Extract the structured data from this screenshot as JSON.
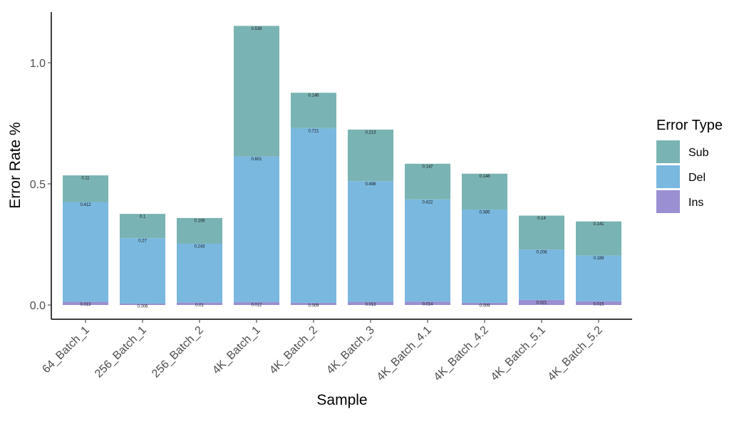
{
  "chart_data": {
    "type": "bar",
    "stacked": true,
    "xlabel": "Sample",
    "ylabel": "Error Rate %",
    "ylim": [
      0,
      1.2
    ],
    "yticks": [
      0.0,
      0.5,
      1.0
    ],
    "ytick_labels": [
      "0.0",
      "0.5",
      "1.0"
    ],
    "categories": [
      "64_Batch_1",
      "256_Batch_1",
      "256_Batch_2",
      "4K_Batch_1",
      "4K_Batch_2",
      "4K_Batch_3",
      "4K_Batch_4.1",
      "4K_Batch_4.2",
      "4K_Batch_5.1",
      "4K_Batch_5.2"
    ],
    "series": [
      {
        "name": "Ins",
        "color": "#9a8fd1",
        "values": [
          0.013,
          0.006,
          0.01,
          0.012,
          0.009,
          0.013,
          0.014,
          0.009,
          0.021,
          0.015
        ]
      },
      {
        "name": "Del",
        "color": "#7ab8df",
        "values": [
          0.412,
          0.27,
          0.243,
          0.601,
          0.721,
          0.498,
          0.422,
          0.385,
          0.208,
          0.189
        ]
      },
      {
        "name": "Sub",
        "color": "#7ab3b3",
        "values": [
          0.11,
          0.1,
          0.106,
          0.539,
          0.146,
          0.213,
          0.147,
          0.148,
          0.14,
          0.141
        ]
      }
    ],
    "legend": {
      "title": "Error Type",
      "position": "right",
      "order": [
        "Sub",
        "Del",
        "Ins"
      ]
    },
    "grid": false
  }
}
